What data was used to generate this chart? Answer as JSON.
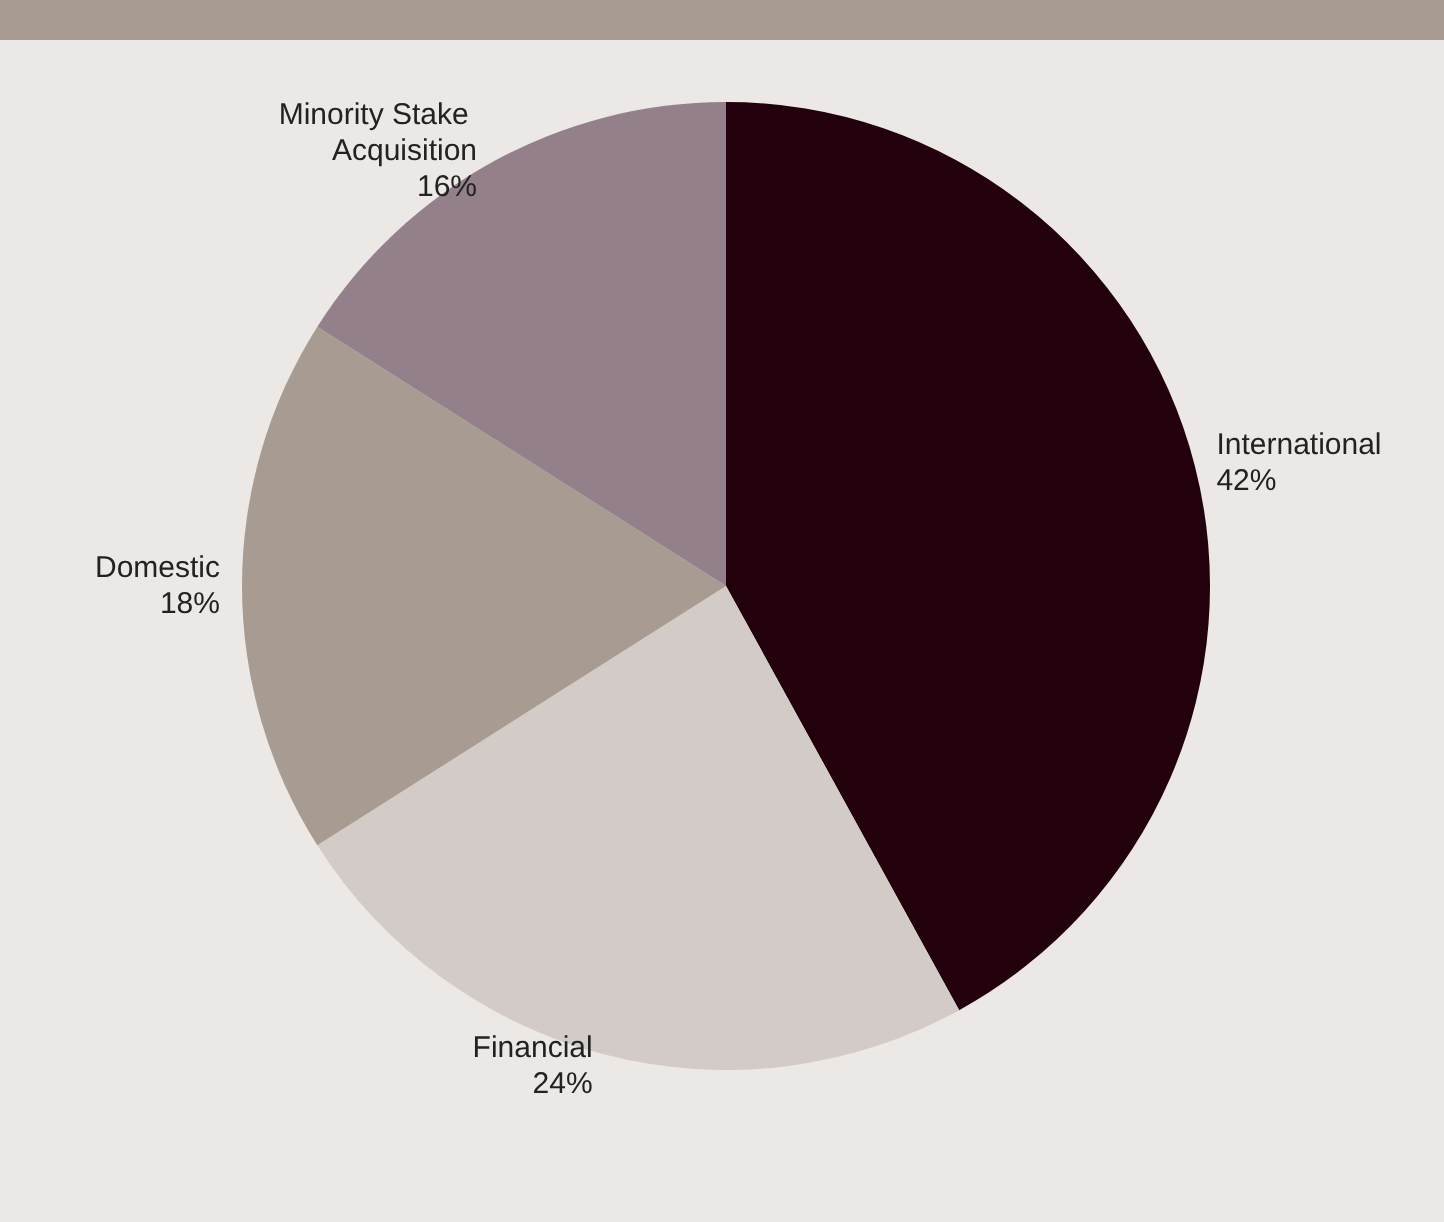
{
  "chart_data": {
    "type": "pie",
    "categories": [
      "International",
      "Financial",
      "Domestic",
      "Minority Stake Acquisition"
    ],
    "values": [
      42,
      24,
      18,
      16
    ],
    "value_labels": [
      "42%",
      "24%",
      "18%",
      "16%"
    ],
    "colors": [
      "#22000c",
      "#d3cbc7",
      "#a89c92",
      "#93808a"
    ],
    "legend": false
  }
}
